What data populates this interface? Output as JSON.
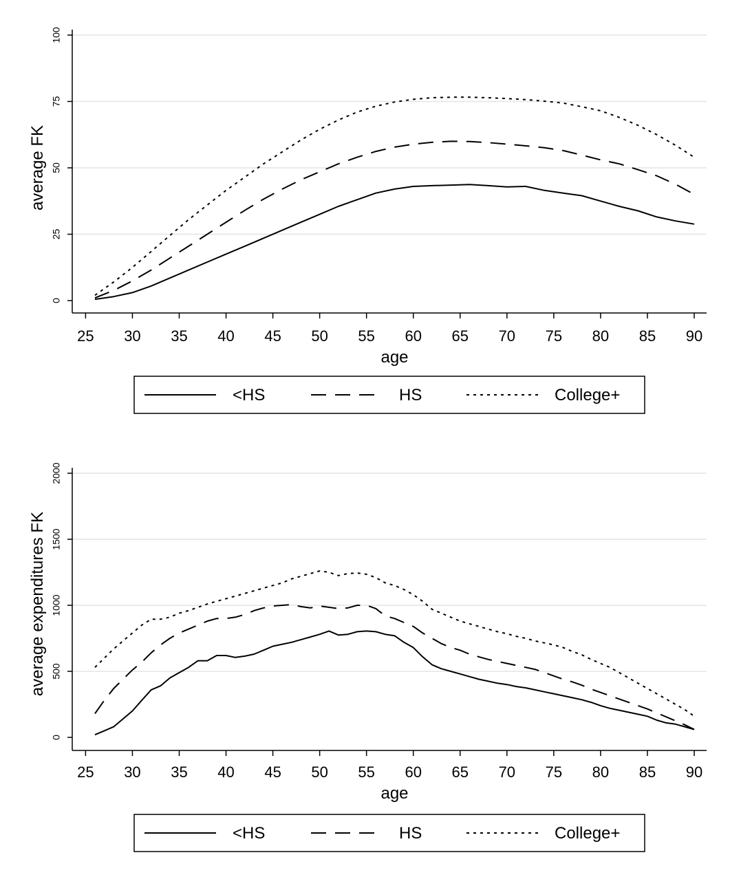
{
  "chart_data": [
    {
      "type": "line",
      "xlabel": "age",
      "ylabel": "average FK",
      "xlim": [
        26,
        90
      ],
      "ylim": [
        0,
        100
      ],
      "xticks": [
        "25",
        "30",
        "35",
        "40",
        "45",
        "50",
        "55",
        "60",
        "65",
        "70",
        "75",
        "80",
        "85",
        "90"
      ],
      "yticks": [
        "0",
        "25",
        "50",
        "75",
        "100"
      ],
      "grid": true,
      "legend_position": "bottom",
      "x": [
        26,
        28,
        30,
        32,
        34,
        36,
        38,
        40,
        42,
        44,
        46,
        48,
        50,
        52,
        54,
        56,
        58,
        60,
        62,
        64,
        66,
        68,
        70,
        72,
        74,
        76,
        78,
        80,
        82,
        84,
        86,
        88,
        90
      ],
      "series": [
        {
          "name": "<HS",
          "style": "solid",
          "values": [
            0.5,
            1.5,
            3,
            5.5,
            8.5,
            11.5,
            14.5,
            17.5,
            20.5,
            23.5,
            26.5,
            29.5,
            32.5,
            35.5,
            38,
            40.5,
            42,
            43,
            43.3,
            43.5,
            43.7,
            43.3,
            42.8,
            43,
            41.5,
            40.5,
            39.5,
            37.5,
            35.5,
            33.8,
            31.5,
            30,
            28.8
          ]
        },
        {
          "name": "HS",
          "style": "dashed",
          "values": [
            1,
            3.8,
            7.4,
            11.5,
            16,
            20.5,
            25,
            29.5,
            34,
            38.2,
            42,
            45.5,
            48.5,
            51.5,
            54,
            56.2,
            57.8,
            58.9,
            59.6,
            60,
            59.9,
            59.5,
            58.9,
            58.3,
            57.6,
            56.5,
            54.8,
            53,
            51.5,
            49.3,
            47,
            43.8,
            40
          ]
        },
        {
          "name": "College+",
          "style": "dotted",
          "values": [
            2,
            7,
            12.5,
            18.5,
            24.5,
            30.5,
            36,
            41.5,
            46.5,
            51.5,
            56,
            60.5,
            64.5,
            68,
            71,
            73.2,
            74.8,
            75.8,
            76.4,
            76.6,
            76.6,
            76.4,
            76.1,
            75.7,
            75.1,
            74.4,
            73,
            71.5,
            69,
            66,
            62.5,
            58.5,
            54
          ]
        }
      ]
    },
    {
      "type": "line",
      "xlabel": "age",
      "ylabel": "average expenditures FK",
      "xlim": [
        26,
        90
      ],
      "ylim": [
        0,
        2000
      ],
      "xticks": [
        "25",
        "30",
        "35",
        "40",
        "45",
        "50",
        "55",
        "60",
        "65",
        "70",
        "75",
        "80",
        "85",
        "90"
      ],
      "yticks": [
        "0",
        "500",
        "1000",
        "1500",
        "2000"
      ],
      "grid": true,
      "legend_position": "bottom",
      "x": [
        26,
        27,
        28,
        29,
        30,
        31,
        32,
        33,
        34,
        35,
        36,
        37,
        38,
        39,
        40,
        41,
        42,
        43,
        44,
        45,
        46,
        47,
        48,
        49,
        50,
        51,
        52,
        53,
        54,
        55,
        56,
        57,
        58,
        59,
        60,
        61,
        62,
        63,
        64,
        65,
        66,
        67,
        68,
        69,
        70,
        71,
        72,
        73,
        74,
        75,
        76,
        77,
        78,
        79,
        80,
        81,
        82,
        83,
        84,
        85,
        86,
        87,
        88,
        89,
        90
      ],
      "series": [
        {
          "name": "<HS",
          "style": "solid",
          "values": [
            20,
            50,
            80,
            140,
            200,
            280,
            360,
            390,
            450,
            490,
            530,
            580,
            580,
            620,
            620,
            605,
            615,
            630,
            660,
            690,
            705,
            720,
            740,
            760,
            780,
            805,
            775,
            780,
            800,
            805,
            800,
            780,
            770,
            720,
            680,
            610,
            550,
            520,
            500,
            480,
            460,
            440,
            425,
            410,
            400,
            385,
            375,
            360,
            345,
            330,
            315,
            300,
            285,
            265,
            240,
            220,
            205,
            190,
            175,
            160,
            130,
            110,
            100,
            80,
            60
          ]
        },
        {
          "name": "HS",
          "style": "dashed",
          "values": [
            180,
            280,
            370,
            440,
            510,
            570,
            640,
            700,
            750,
            790,
            820,
            850,
            880,
            900,
            900,
            910,
            930,
            960,
            980,
            995,
            1000,
            1005,
            990,
            980,
            995,
            985,
            975,
            980,
            1000,
            1000,
            975,
            920,
            900,
            870,
            840,
            790,
            750,
            710,
            680,
            660,
            630,
            610,
            590,
            575,
            560,
            545,
            530,
            515,
            490,
            465,
            440,
            420,
            395,
            365,
            340,
            315,
            290,
            265,
            240,
            215,
            185,
            155,
            125,
            95,
            60
          ]
        },
        {
          "name": "College+",
          "style": "dotted",
          "values": [
            530,
            600,
            670,
            730,
            790,
            850,
            895,
            895,
            910,
            940,
            960,
            985,
            1010,
            1030,
            1050,
            1070,
            1090,
            1110,
            1130,
            1150,
            1170,
            1200,
            1220,
            1240,
            1260,
            1250,
            1225,
            1240,
            1245,
            1235,
            1210,
            1170,
            1150,
            1120,
            1080,
            1030,
            970,
            940,
            910,
            880,
            860,
            840,
            820,
            800,
            785,
            765,
            750,
            730,
            715,
            700,
            680,
            650,
            625,
            590,
            560,
            530,
            490,
            450,
            410,
            370,
            330,
            290,
            250,
            210,
            160
          ]
        }
      ]
    }
  ],
  "legend": {
    "items": [
      {
        "label": "<HS",
        "style": "solid"
      },
      {
        "label": "HS",
        "style": "dashed"
      },
      {
        "label": "College+",
        "style": "dotted"
      }
    ]
  }
}
